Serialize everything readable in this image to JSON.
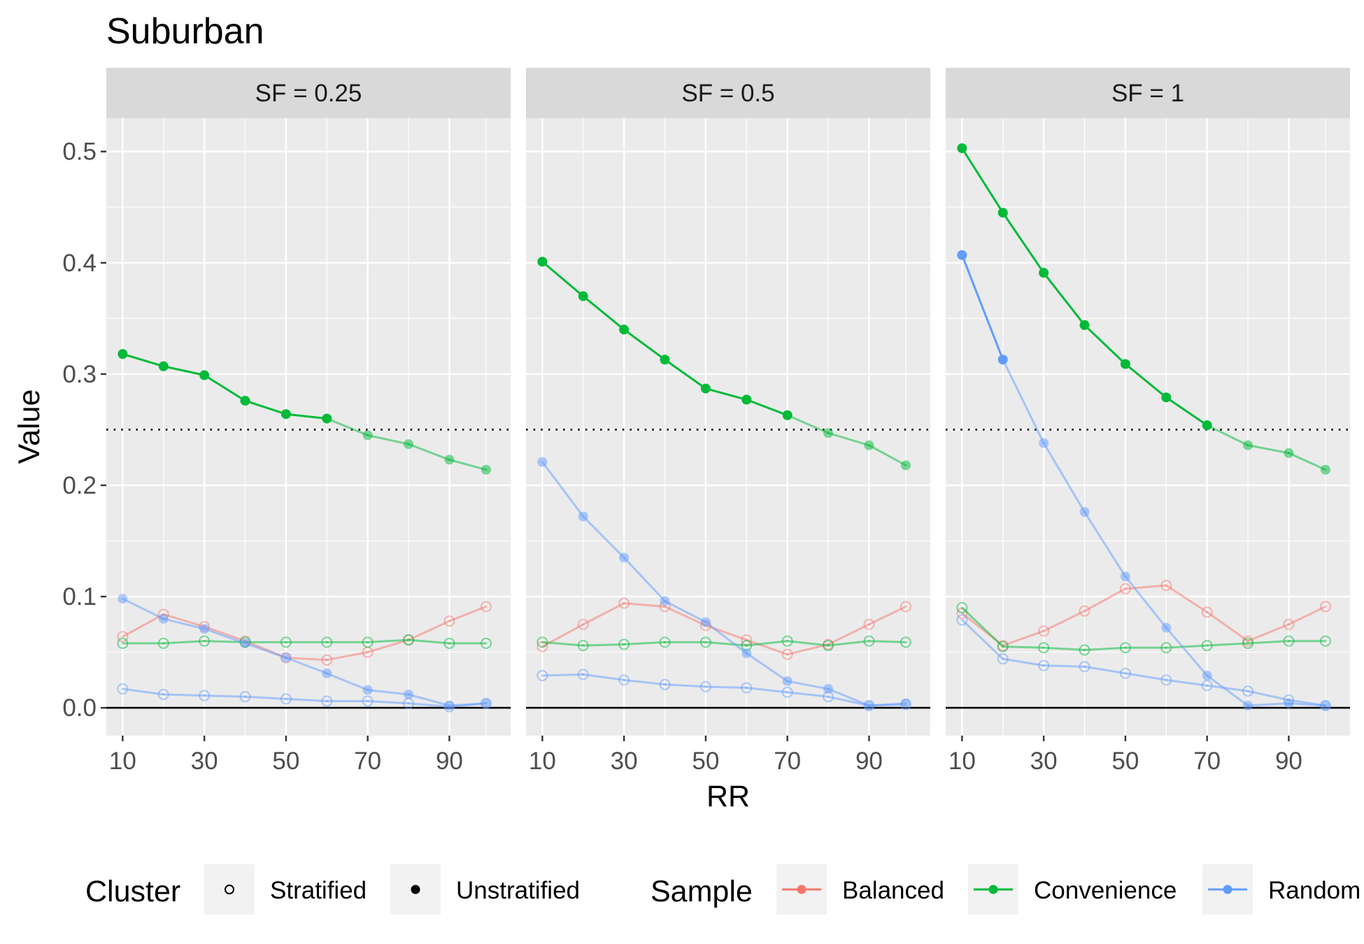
{
  "chart_data": {
    "type": "line",
    "title": "Suburban",
    "xlabel": "RR",
    "ylabel": "Value",
    "x": [
      10,
      20,
      30,
      40,
      50,
      60,
      70,
      80,
      90,
      99
    ],
    "xticks": [
      10,
      30,
      50,
      70,
      90
    ],
    "yticks": [
      0.0,
      0.1,
      0.2,
      0.3,
      0.4,
      0.5
    ],
    "ytick_labels": [
      "0.0",
      "0.1",
      "0.2",
      "0.3",
      "0.4",
      "0.5"
    ],
    "xlim": [
      6,
      105
    ],
    "ylim": [
      -0.025,
      0.53
    ],
    "hline_dotted": 0.25,
    "hline_solid": 0.0,
    "grid": true,
    "legend_position": "bottom",
    "colors": {
      "Balanced": "#F8766D",
      "Convenience": "#00BA38",
      "Random": "#619CFF"
    },
    "panels": [
      {
        "label": "SF = 0.25",
        "series": [
          {
            "sample": "Convenience",
            "cluster": "Unstratified",
            "values": [
              0.318,
              0.307,
              0.299,
              0.276,
              0.264,
              0.26,
              0.245,
              0.237,
              0.223,
              0.214
            ]
          },
          {
            "sample": "Random",
            "cluster": "Unstratified",
            "values": [
              0.098,
              0.08,
              0.071,
              0.058,
              0.045,
              0.031,
              0.016,
              0.012,
              0.002,
              0.004
            ]
          },
          {
            "sample": "Balanced",
            "cluster": "Unstratified",
            "values": null
          },
          {
            "sample": "Balanced",
            "cluster": "Stratified",
            "values": [
              0.064,
              0.084,
              0.073,
              0.06,
              0.045,
              0.043,
              0.05,
              0.061,
              0.078,
              0.091
            ]
          },
          {
            "sample": "Convenience",
            "cluster": "Stratified",
            "values": [
              0.058,
              0.058,
              0.06,
              0.059,
              0.059,
              0.059,
              0.059,
              0.061,
              0.058,
              0.058
            ]
          },
          {
            "sample": "Random",
            "cluster": "Stratified",
            "values": [
              0.017,
              0.012,
              0.011,
              0.01,
              0.008,
              0.006,
              0.006,
              0.004,
              0.001,
              0.004
            ]
          }
        ]
      },
      {
        "label": "SF = 0.5",
        "series": [
          {
            "sample": "Convenience",
            "cluster": "Unstratified",
            "values": [
              0.401,
              0.37,
              0.34,
              0.313,
              0.287,
              0.277,
              0.263,
              0.247,
              0.236,
              0.218
            ]
          },
          {
            "sample": "Random",
            "cluster": "Unstratified",
            "values": [
              0.221,
              0.172,
              0.135,
              0.096,
              0.077,
              0.049,
              0.024,
              0.017,
              0.002,
              0.004
            ]
          },
          {
            "sample": "Balanced",
            "cluster": "Unstratified",
            "values": null
          },
          {
            "sample": "Balanced",
            "cluster": "Stratified",
            "values": [
              0.055,
              0.075,
              0.094,
              0.091,
              0.074,
              0.061,
              0.048,
              0.057,
              0.075,
              0.091
            ]
          },
          {
            "sample": "Convenience",
            "cluster": "Stratified",
            "values": [
              0.059,
              0.056,
              0.057,
              0.059,
              0.059,
              0.056,
              0.06,
              0.056,
              0.06,
              0.059
            ]
          },
          {
            "sample": "Random",
            "cluster": "Stratified",
            "values": [
              0.029,
              0.03,
              0.025,
              0.021,
              0.019,
              0.018,
              0.014,
              0.01,
              0.002,
              0.003
            ]
          }
        ]
      },
      {
        "label": "SF = 1",
        "series": [
          {
            "sample": "Convenience",
            "cluster": "Unstratified",
            "values": [
              0.503,
              0.445,
              0.391,
              0.344,
              0.309,
              0.279,
              0.254,
              0.236,
              0.229,
              0.214
            ]
          },
          {
            "sample": "Random",
            "cluster": "Unstratified",
            "values": [
              0.407,
              0.313,
              0.238,
              0.176,
              0.118,
              0.072,
              0.029,
              0.002,
              0.004,
              0.002
            ]
          },
          {
            "sample": "Balanced",
            "cluster": "Unstratified",
            "values": null
          },
          {
            "sample": "Balanced",
            "cluster": "Stratified",
            "values": [
              0.085,
              0.056,
              0.069,
              0.087,
              0.107,
              0.11,
              0.086,
              0.06,
              0.075,
              0.091
            ]
          },
          {
            "sample": "Convenience",
            "cluster": "Stratified",
            "values": [
              0.09,
              0.055,
              0.054,
              0.052,
              0.054,
              0.054,
              0.056,
              0.058,
              0.06,
              0.06
            ]
          },
          {
            "sample": "Random",
            "cluster": "Stratified",
            "values": [
              0.079,
              0.044,
              0.038,
              0.037,
              0.031,
              0.025,
              0.02,
              0.015,
              0.007,
              0.002
            ]
          }
        ]
      }
    ],
    "legend": {
      "cluster_title": "Cluster",
      "cluster_items": [
        "Stratified",
        "Unstratified"
      ],
      "sample_title": "Sample",
      "sample_items": [
        "Balanced",
        "Convenience",
        "Random"
      ]
    }
  }
}
